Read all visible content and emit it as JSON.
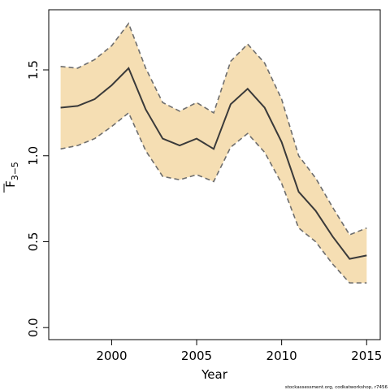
{
  "chart_data": {
    "type": "line",
    "title": "",
    "xlabel": "Year",
    "ylabel": "F",
    "ylabel_subscript": "3−5",
    "xlim": [
      1996.3,
      2015.8
    ],
    "ylim": [
      -0.07,
      1.85
    ],
    "x_ticks": [
      2000,
      2005,
      2010,
      2015
    ],
    "y_ticks": [
      0.0,
      0.5,
      1.0,
      1.5
    ],
    "y_tick_labels": [
      "0.0",
      "0.5",
      "1.0",
      "1.5"
    ],
    "grid": false,
    "x": [
      1997,
      1998,
      1999,
      2000,
      2001,
      2002,
      2003,
      2004,
      2005,
      2006,
      2007,
      2008,
      2009,
      2010,
      2011,
      2012,
      2013,
      2014,
      2015
    ],
    "series": [
      {
        "role": "estimate",
        "values": [
          1.28,
          1.29,
          1.33,
          1.41,
          1.51,
          1.27,
          1.1,
          1.06,
          1.1,
          1.04,
          1.3,
          1.39,
          1.28,
          1.08,
          0.79,
          0.68,
          0.53,
          0.4,
          0.42
        ]
      },
      {
        "role": "upper",
        "values": [
          1.52,
          1.51,
          1.56,
          1.64,
          1.77,
          1.51,
          1.31,
          1.26,
          1.31,
          1.25,
          1.55,
          1.65,
          1.54,
          1.33,
          1.0,
          0.87,
          0.7,
          0.54,
          0.58
        ]
      },
      {
        "role": "lower",
        "values": [
          1.04,
          1.06,
          1.1,
          1.17,
          1.25,
          1.03,
          0.88,
          0.86,
          0.89,
          0.85,
          1.05,
          1.13,
          1.02,
          0.84,
          0.58,
          0.5,
          0.37,
          0.26,
          0.26
        ]
      }
    ],
    "colors": {
      "band": "#f5deb3",
      "line": "#3a3a3a",
      "bound": "#6e6e6e",
      "axis": "#000000"
    }
  },
  "credit": "stockassessment.org, codkatworkshop, r7456"
}
